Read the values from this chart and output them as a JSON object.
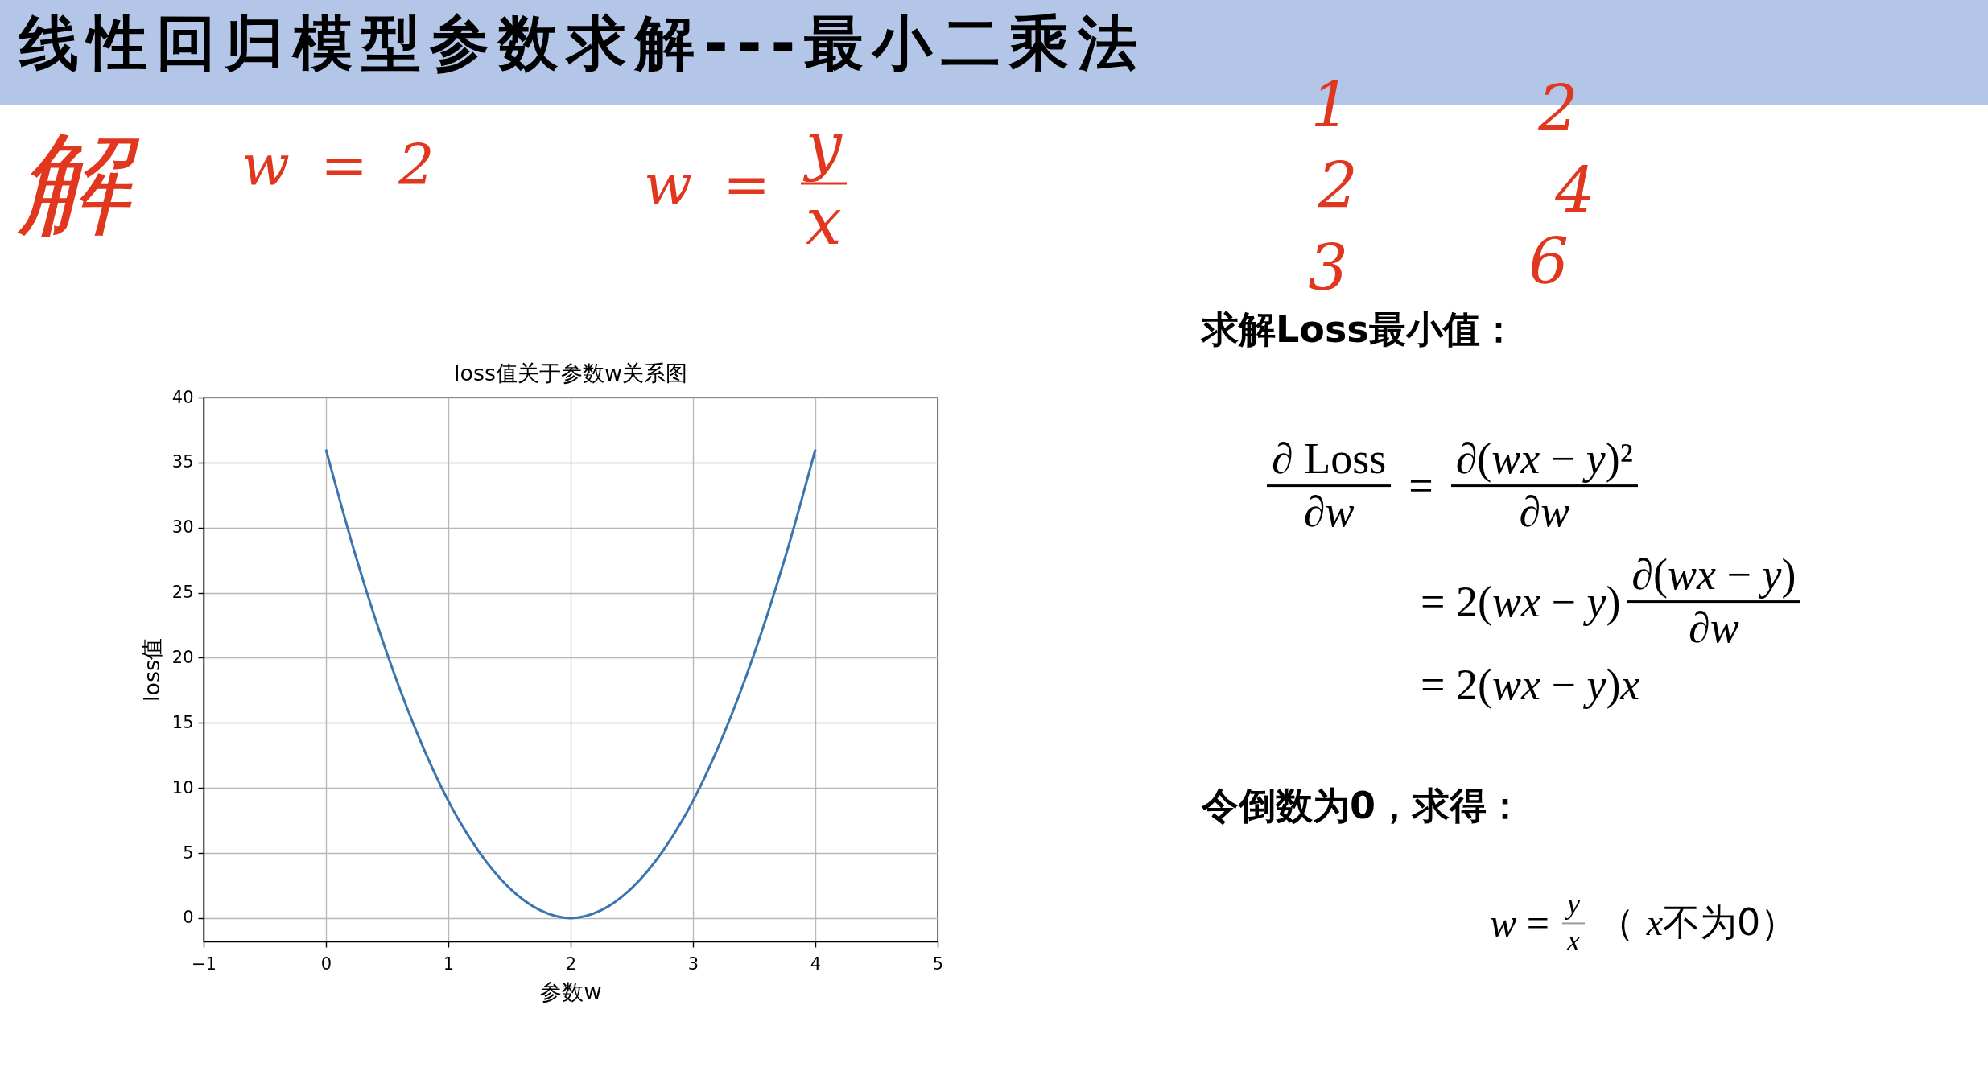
{
  "chart_data": [
    {
      "type": "line",
      "title": "loss值关于参数w关系图",
      "xlabel": "参数w",
      "ylabel": "loss值",
      "x": [
        0,
        0.25,
        0.5,
        0.75,
        1,
        1.25,
        1.5,
        1.75,
        2,
        2.25,
        2.5,
        2.75,
        3,
        3.25,
        3.5,
        3.75,
        4
      ],
      "values": [
        36,
        27.6,
        20.3,
        14.1,
        9,
        5.1,
        2.3,
        0.6,
        0,
        0.6,
        2.3,
        5.1,
        9,
        14.1,
        20.3,
        27.6,
        36
      ],
      "color": "#3b75af",
      "xlim": [
        -1,
        5
      ],
      "xticks": [
        {
          "value": -1,
          "label": "−1"
        },
        0,
        1,
        2,
        3,
        4,
        5
      ],
      "ylim": [
        -1.8,
        40
      ],
      "yticks": [
        0,
        5,
        10,
        15,
        20,
        25,
        30,
        35,
        40
      ],
      "grid": true
    },
    {
      "type": "other",
      "title": "线性回归模型参数求解---最小二乘法",
      "annotations": [
        "解",
        "w = 2",
        "w =",
        "y",
        "x",
        "1",
        "2",
        "2",
        "4",
        "3",
        "6",
        "求解Loss最小值：",
        "∂ Loss",
        "∂w",
        "=",
        "∂(wx − y)²",
        "∂w",
        "= 2(wx − y)",
        "∂(wx − y)",
        "∂w",
        "= 2(wx − y)x",
        "令倒数为0，求得：",
        "w =",
        "y",
        "x",
        "（ x不为0）"
      ]
    }
  ]
}
